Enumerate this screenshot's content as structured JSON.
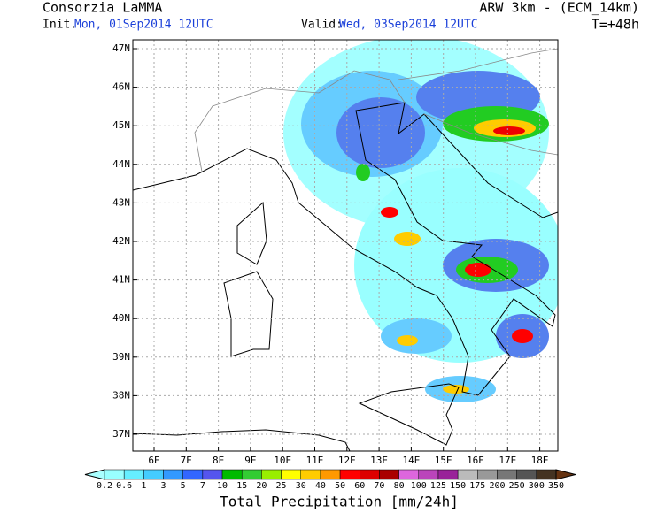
{
  "header": {
    "title": "Consorzia LaMMA",
    "init_label": "Init.:",
    "init_value": "Mon, 01Sep2014 12UTC",
    "valid_label": "Valid:",
    "valid_value": "Wed, 03Sep2014 12UTC",
    "model": "ARW 3km - (ECM_14km)",
    "lead": "T=+48h"
  },
  "map": {
    "lat_labels": [
      "47N",
      "46N",
      "45N",
      "44N",
      "43N",
      "42N",
      "41N",
      "40N",
      "39N",
      "38N",
      "37N"
    ],
    "lon_labels": [
      "6E",
      "7E",
      "8E",
      "9E",
      "10E",
      "11E",
      "12E",
      "13E",
      "14E",
      "15E",
      "16E",
      "17E",
      "18E"
    ]
  },
  "colorbar": {
    "labels": [
      "0.2",
      "0.6",
      "1",
      "3",
      "5",
      "7",
      "10",
      "15",
      "20",
      "25",
      "30",
      "40",
      "50",
      "60",
      "70",
      "80",
      "100",
      "125",
      "150",
      "175",
      "200",
      "250",
      "300",
      "350"
    ],
    "title": "Total Precipitation [mm/24h]"
  }
}
